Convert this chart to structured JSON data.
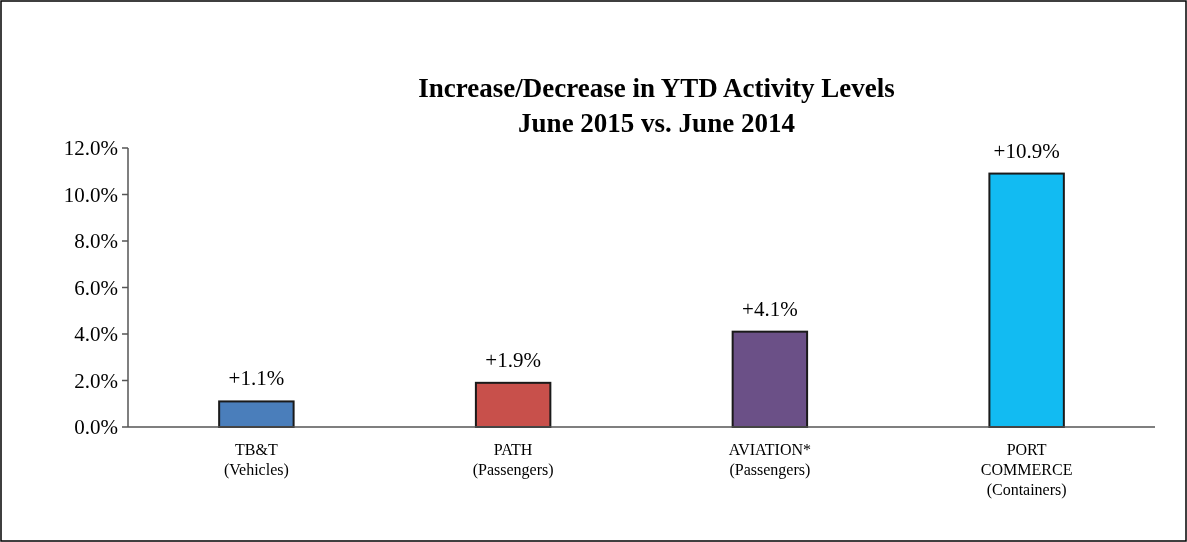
{
  "chart_data": {
    "type": "bar",
    "title": "Increase/Decrease in YTD Activity Levels\nJune 2015 vs. June 2014",
    "categories": [
      "TB&T\n(Vehicles)",
      "PATH\n(Passengers)",
      "AVIATION*\n(Passengers)",
      "PORT\nCOMMERCE\n(Containers)"
    ],
    "values": [
      1.1,
      1.9,
      4.1,
      10.9
    ],
    "colors": [
      "#4a7ebb",
      "#c8504b",
      "#6b5087",
      "#12bbf2"
    ],
    "value_labels": [
      "+1.1%",
      "+1.9%",
      "+4.1%",
      "+10.9%"
    ],
    "ylim": [
      0,
      12
    ],
    "yticks": [
      {
        "value": 0,
        "label": "0.0%"
      },
      {
        "value": 2,
        "label": "2.0%"
      },
      {
        "value": 4,
        "label": "4.0%"
      },
      {
        "value": 6,
        "label": "6.0%"
      },
      {
        "value": 8,
        "label": "8.0%"
      },
      {
        "value": 10,
        "label": "10.0%"
      },
      {
        "value": 12,
        "label": "12.0%"
      }
    ],
    "grid": false
  }
}
